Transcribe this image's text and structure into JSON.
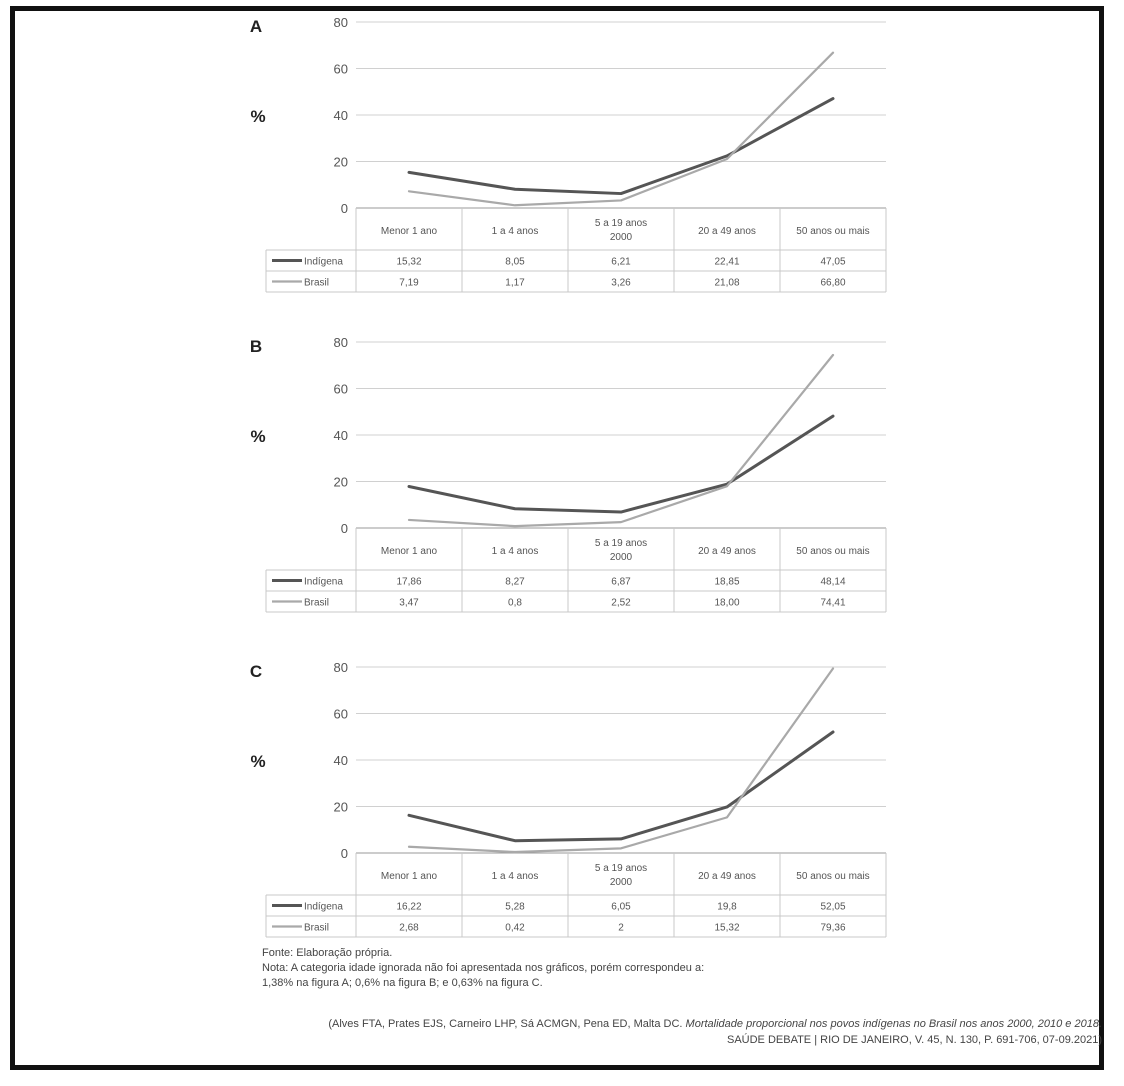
{
  "chart_data": [
    {
      "type": "line",
      "panel_label": "A",
      "ylabel": "%",
      "ylim": [
        0,
        80
      ],
      "yticks": [
        "0",
        "20",
        "40",
        "60",
        "80"
      ],
      "categories": [
        "Menor 1 ano",
        "1 a 4 anos",
        "5 a 19 anos 2000",
        "20 a 49 anos",
        "50 anos ou mais"
      ],
      "categories_display": [
        "Menor 1 ano",
        "1 a 4 anos",
        "5 a 19 anos",
        "20 a 49 anos",
        "50 anos ou mais"
      ],
      "category_sub": [
        "",
        "",
        "2000",
        "",
        ""
      ],
      "series": [
        {
          "name": "Indígena",
          "values": [
            15.32,
            8.05,
            6.21,
            22.41,
            47.05
          ],
          "labels": [
            "15,32",
            "8,05",
            "6,21",
            "22,41",
            "47,05"
          ],
          "color": "#555555"
        },
        {
          "name": "Brasil",
          "values": [
            7.19,
            1.17,
            3.26,
            21.08,
            66.8
          ],
          "labels": [
            "7,19",
            "1,17",
            "3,26",
            "21,08",
            "66,80"
          ],
          "color": "#a9a9a9"
        }
      ],
      "grid": true,
      "legend": "table-left"
    },
    {
      "type": "line",
      "panel_label": "B",
      "ylabel": "%",
      "ylim": [
        0,
        80
      ],
      "yticks": [
        "0",
        "20",
        "40",
        "60",
        "80"
      ],
      "categories": [
        "Menor 1 ano",
        "1 a 4 anos",
        "5 a 19 anos 2000",
        "20 a 49 anos",
        "50 anos ou mais"
      ],
      "categories_display": [
        "Menor 1 ano",
        "1 a 4 anos",
        "5 a 19 anos",
        "20 a 49 anos",
        "50 anos ou mais"
      ],
      "category_sub": [
        "",
        "",
        "2000",
        "",
        ""
      ],
      "series": [
        {
          "name": "Indígena",
          "values": [
            17.86,
            8.27,
            6.87,
            18.85,
            48.14
          ],
          "labels": [
            "17,86",
            "8,27",
            "6,87",
            "18,85",
            "48,14"
          ],
          "color": "#555555"
        },
        {
          "name": "Brasil",
          "values": [
            3.47,
            0.8,
            2.52,
            18.0,
            74.41
          ],
          "labels": [
            "3,47",
            "0,8",
            "2,52",
            "18,00",
            "74,41"
          ],
          "color": "#a9a9a9"
        }
      ],
      "grid": true,
      "legend": "table-left"
    },
    {
      "type": "line",
      "panel_label": "C",
      "ylabel": "%",
      "ylim": [
        0,
        80
      ],
      "yticks": [
        "0",
        "20",
        "40",
        "60",
        "80"
      ],
      "categories": [
        "Menor 1 ano",
        "1 a 4 anos",
        "5 a 19 anos 2000",
        "20 a 49 anos",
        "50 anos ou mais"
      ],
      "categories_display": [
        "Menor 1 ano",
        "1 a 4 anos",
        "5 a 19 anos",
        "20 a 49 anos",
        "50 anos ou mais"
      ],
      "category_sub": [
        "",
        "",
        "2000",
        "",
        ""
      ],
      "series": [
        {
          "name": "Indígena",
          "values": [
            16.22,
            5.28,
            6.05,
            19.8,
            52.05
          ],
          "labels": [
            "16,22",
            "5,28",
            "6,05",
            "19,8",
            "52,05"
          ],
          "color": "#555555"
        },
        {
          "name": "Brasil",
          "values": [
            2.68,
            0.42,
            2,
            15.32,
            79.36
          ],
          "labels": [
            "2,68",
            "0,42",
            "2",
            "15,32",
            "79,36"
          ],
          "color": "#a9a9a9"
        }
      ],
      "grid": true,
      "legend": "table-left"
    }
  ],
  "notes": {
    "source": "Fonte: Elaboração própria.",
    "note_line1": "Nota: A categoria idade ignorada não foi apresentada nos gráficos, porém correspondeu a:",
    "note_line2": "1,38% na figura A; 0,6% na figura B; e 0,63% na figura C."
  },
  "citation": {
    "authors": "(Alves FTA, Prates EJS, Carneiro LHP, Sá ACMGN, Pena ED, Malta DC. ",
    "title": "Mortalidade proporcional nos povos indígenas no Brasil nos anos 2000, 2010 e 2018.",
    "journal": "SAÚDE DEBATE | RIO DE JANEIRO, V. 45, N. 130, P. 691-706, 07-09.2021)"
  }
}
